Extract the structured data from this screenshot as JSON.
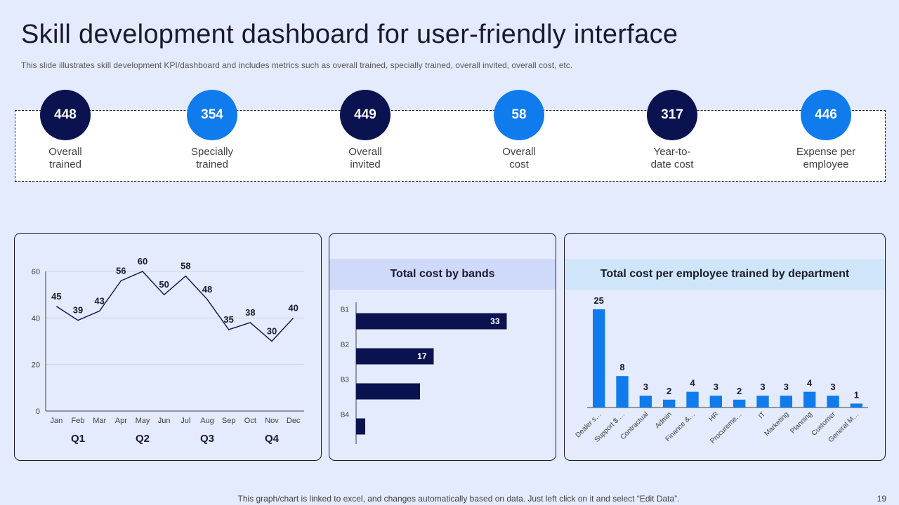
{
  "title": "Skill development dashboard for user-friendly interface",
  "subtitle": "This slide illustrates skill development KPI/dashboard and includes metrics such as overall trained, specially trained, overall invited, overall cost, etc.",
  "colors": {
    "dark": "#0b1250",
    "bright": "#0f7bed",
    "panel_header_bands": "#cfdafb",
    "panel_header_dept": "#cfe6fa"
  },
  "kpis": [
    {
      "value": "448",
      "label_line1": "Overall",
      "label_line2": "trained",
      "color": "#0b1250"
    },
    {
      "value": "354",
      "label_line1": "Specially",
      "label_line2": "trained",
      "color": "#0f7bed"
    },
    {
      "value": "449",
      "label_line1": "Overall",
      "label_line2": "invited",
      "color": "#0b1250"
    },
    {
      "value": "58",
      "label_line1": "Overall",
      "label_line2": "cost",
      "color": "#0f7bed"
    },
    {
      "value": "317",
      "label_line1": "Year-to-",
      "label_line2": "date cost",
      "color": "#0b1250"
    },
    {
      "value": "446",
      "label_line1": "Expense per",
      "label_line2": "employee",
      "color": "#0f7bed"
    }
  ],
  "chart_data": [
    {
      "type": "line",
      "title": "",
      "categories": [
        "Jan",
        "Feb",
        "Mar",
        "Apr",
        "May",
        "Jun",
        "Jul",
        "Aug",
        "Sep",
        "Oct",
        "Nov",
        "Dec"
      ],
      "values": [
        45,
        39,
        43,
        56,
        60,
        50,
        58,
        48,
        35,
        38,
        30,
        40
      ],
      "ylim": [
        0,
        60
      ],
      "yticks": [
        0,
        20,
        40,
        60
      ],
      "groups": [
        "Q1",
        "Q2",
        "Q3",
        "Q4"
      ],
      "grid": true
    },
    {
      "type": "bar",
      "orientation": "horizontal",
      "title": "Total cost by bands",
      "categories": [
        "B1",
        "B2",
        "B3",
        "B4"
      ],
      "values": [
        33,
        17,
        14,
        2
      ],
      "value_labels": [
        "33",
        "17",
        "",
        ""
      ],
      "xlim": [
        0,
        40
      ]
    },
    {
      "type": "bar",
      "title": "Total cost  per employee trained by department",
      "categories": [
        "Dealer s…",
        "Support $ …",
        "Contractual",
        "Admin",
        "Finance &…",
        "HR",
        "Procureme…",
        "IT",
        "Marketing",
        "Planning",
        "Customer",
        "General M…"
      ],
      "values": [
        25,
        8,
        3,
        2,
        4,
        3,
        2,
        3,
        3,
        4,
        3,
        1
      ],
      "ylim": [
        0,
        25
      ]
    }
  ],
  "footer": "This graph/chart is linked to excel,  and changes automatically based on data. Just left click on it and select “Edit Data”.",
  "page_number": "19"
}
